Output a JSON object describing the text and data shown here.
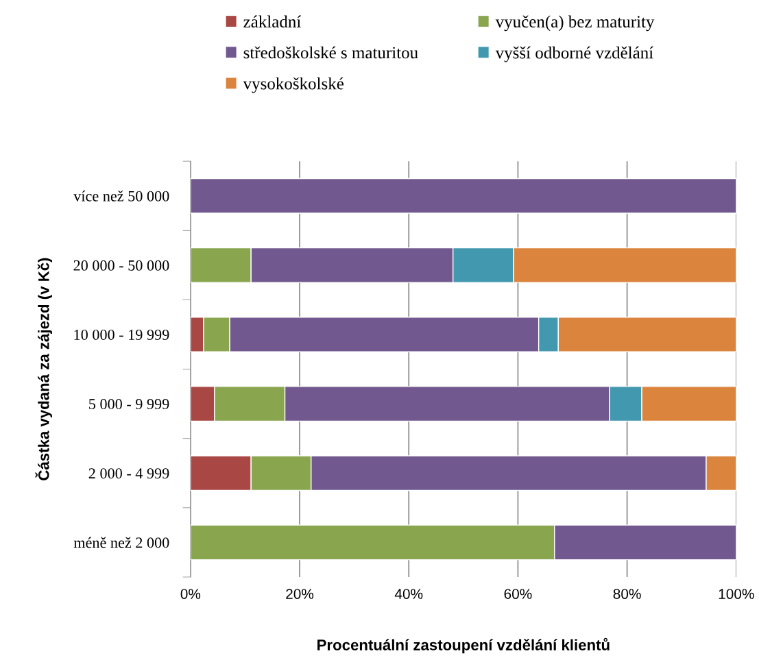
{
  "chart_data": {
    "type": "bar",
    "orientation": "horizontal",
    "stacked": true,
    "categories": [
      "více než 50 000",
      "20 000 - 50 000",
      "10 000 - 19 999",
      "5 000 - 9 999",
      "2 000 - 4 999",
      "méně než 2 000"
    ],
    "series": [
      {
        "name": "základní",
        "color": "#a84744",
        "values": [
          0,
          0,
          2.4,
          4.4,
          11.1,
          0
        ]
      },
      {
        "name": "vyučen(a) bez maturity",
        "color": "#89a54e",
        "values": [
          0,
          11.1,
          4.8,
          12.9,
          11.0,
          66.7
        ]
      },
      {
        "name": "středoškolské s maturitou",
        "color": "#71588f",
        "values": [
          100,
          37.0,
          56.6,
          59.5,
          72.4,
          33.3
        ]
      },
      {
        "name": "vyšší odborné vzdělání",
        "color": "#4198af",
        "values": [
          0,
          11.1,
          3.6,
          5.9,
          0,
          0
        ]
      },
      {
        "name": "vysokoškolské",
        "color": "#db843d",
        "values": [
          0,
          40.8,
          32.6,
          17.3,
          5.5,
          0
        ]
      }
    ],
    "xlim": [
      0,
      100
    ],
    "xticks": [
      {
        "value": 0,
        "label": "0%"
      },
      {
        "value": 20,
        "label": "20%"
      },
      {
        "value": 40,
        "label": "40%"
      },
      {
        "value": 60,
        "label": "60%"
      },
      {
        "value": 80,
        "label": "80%"
      },
      {
        "value": 100,
        "label": "100%"
      }
    ],
    "xlabel": "Procentuální zastoupení vzdělání klientů",
    "ylabel": "Částka vydaná za zájezd (v Kč)",
    "grid": "x",
    "legend": "top"
  }
}
